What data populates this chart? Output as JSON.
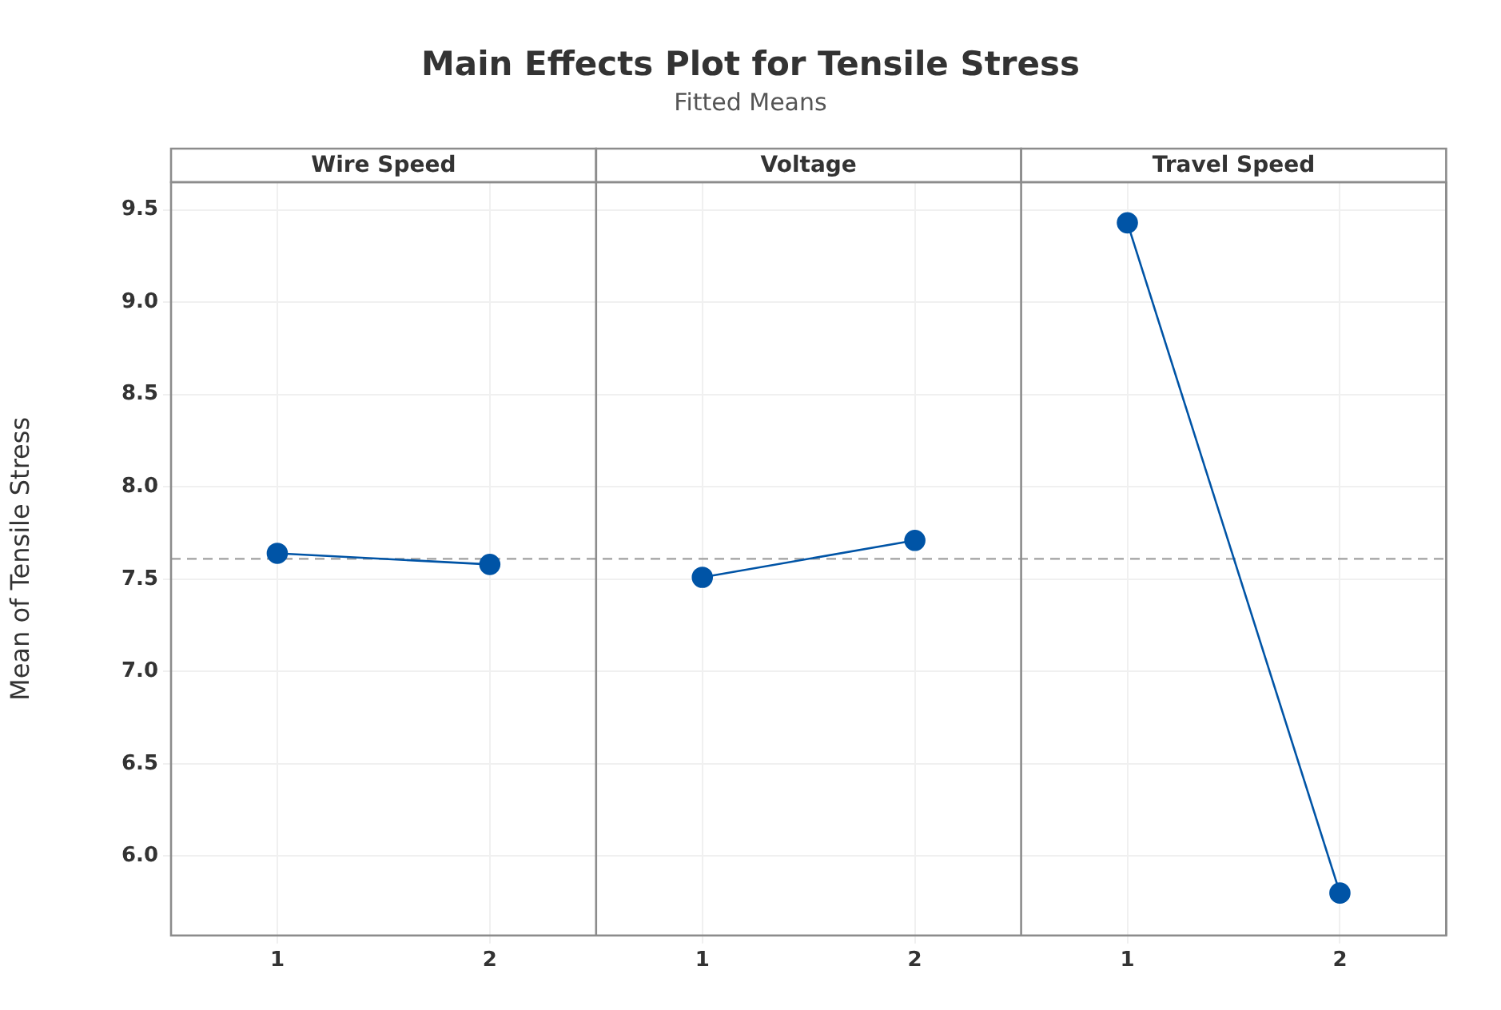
{
  "chart_data": {
    "type": "line",
    "title": "Main Effects Plot for Tensile Stress",
    "subtitle": "Fitted Means",
    "ylabel": "Mean of Tensile Stress",
    "annotations": [
      "Wire Speed",
      "Voltage",
      "Travel Speed"
    ],
    "categories": [
      "1",
      "2",
      "1",
      "2",
      "1",
      "2"
    ],
    "series": [
      {
        "color": "#0054a6",
        "values": [
          7.64,
          7.58,
          null,
          null,
          null,
          null
        ]
      },
      {
        "color": "#0054a6",
        "values": [
          null,
          null,
          7.51,
          7.71,
          null,
          null
        ]
      },
      {
        "color": "#0054a6",
        "values": [
          null,
          null,
          null,
          null,
          9.43,
          5.8
        ]
      }
    ],
    "marker": "circle",
    "ylim": [
      5.57,
      9.65
    ],
    "yticks": [
      {
        "value": 6,
        "label": "6.0"
      },
      {
        "value": 6.5,
        "label": "6.5"
      },
      {
        "value": 7,
        "label": "7.0"
      },
      {
        "value": 7.5,
        "label": "7.5"
      },
      {
        "value": 8,
        "label": "8.0"
      },
      {
        "value": 8.5,
        "label": "8.5"
      },
      {
        "value": 9,
        "label": "9.0"
      },
      {
        "value": 9.5,
        "label": "9.5"
      }
    ],
    "grid": true,
    "ref_lines": [
      {
        "axis": "y",
        "value": 7.61,
        "label": null,
        "color": "#a0a0a0",
        "line_style": "dashed"
      }
    ]
  }
}
